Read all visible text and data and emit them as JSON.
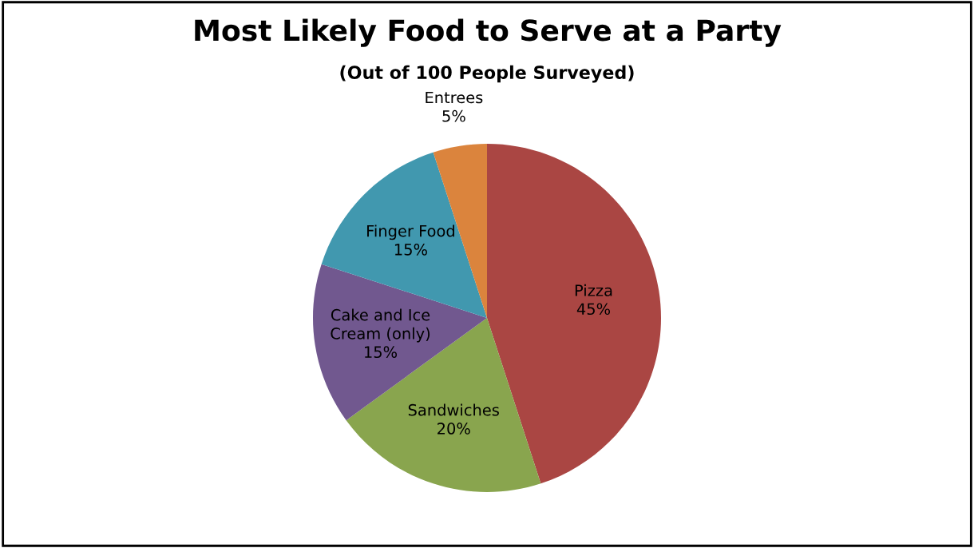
{
  "chart_data": {
    "type": "pie",
    "title": "Most Likely Food to Serve at a Party",
    "subtitle": "(Out of 100 People Surveyed)",
    "categories": [
      "Pizza",
      "Sandwiches",
      "Cake and Ice\nCream (only)",
      "Finger Food",
      "Entrees"
    ],
    "values": [
      45,
      20,
      15,
      15,
      5
    ],
    "colors": [
      "#aa4643",
      "#89a54e",
      "#71588f",
      "#4198af",
      "#db843d"
    ],
    "value_labels": [
      "45%",
      "20%",
      "15%",
      "15%",
      "5%"
    ]
  }
}
